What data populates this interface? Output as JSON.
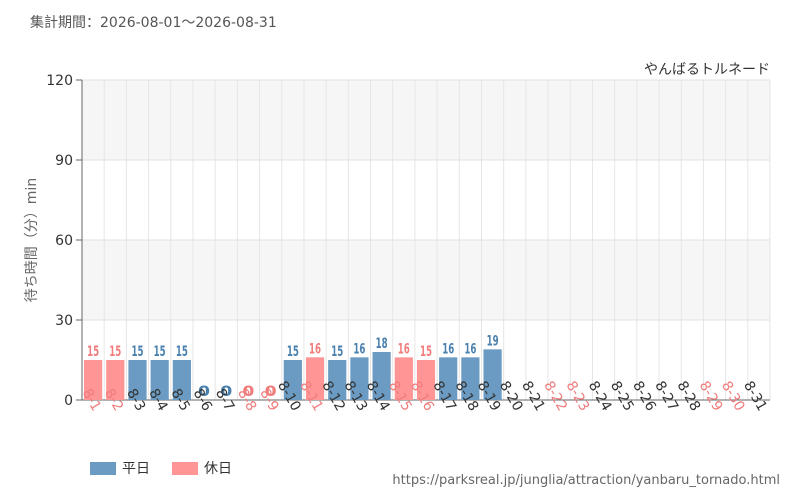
{
  "period_text": "集計期間：2026-08-01～2026-08-31",
  "source_url": "https://parksreal.jp/junglia/attraction/yanbaru_tornado.html",
  "colors": {
    "weekday": "#6b9bc3",
    "holiday": "#ff9594",
    "weekday_text": "#4a80ad",
    "holiday_text": "#f07c7c"
  },
  "chart_data": {
    "type": "bar",
    "title": "",
    "attraction": "やんばるトルネード",
    "ylabel": "待ち時間（分）min",
    "ylim": [
      0,
      120
    ],
    "yticks": [
      0,
      30,
      60,
      90,
      120
    ],
    "categories": [
      "8-1",
      "8-2",
      "8-3",
      "8-4",
      "8-5",
      "8-6",
      "8-7",
      "8-8",
      "8-9",
      "8-10",
      "8-11",
      "8-12",
      "8-13",
      "8-14",
      "8-15",
      "8-16",
      "8-17",
      "8-18",
      "8-19",
      "8-20",
      "8-21",
      "8-22",
      "8-23",
      "8-24",
      "8-25",
      "8-26",
      "8-27",
      "8-28",
      "8-29",
      "8-30",
      "8-31"
    ],
    "day_types": [
      "holiday",
      "holiday",
      "weekday",
      "weekday",
      "weekday",
      "weekday",
      "weekday",
      "holiday",
      "holiday",
      "weekday",
      "holiday",
      "weekday",
      "weekday",
      "weekday",
      "holiday",
      "holiday",
      "weekday",
      "weekday",
      "weekday",
      "weekday",
      "weekday",
      "holiday",
      "holiday",
      "weekday",
      "weekday",
      "weekday",
      "weekday",
      "weekday",
      "holiday",
      "holiday",
      "weekday"
    ],
    "values": [
      15,
      15,
      15,
      15,
      15,
      0,
      0,
      0,
      0,
      15,
      16,
      15,
      16,
      18,
      16,
      15,
      16,
      16,
      19,
      null,
      null,
      null,
      null,
      null,
      null,
      null,
      null,
      null,
      null,
      null,
      null
    ],
    "legend": [
      {
        "key": "weekday",
        "label": "平日"
      },
      {
        "key": "holiday",
        "label": "休日"
      }
    ]
  }
}
